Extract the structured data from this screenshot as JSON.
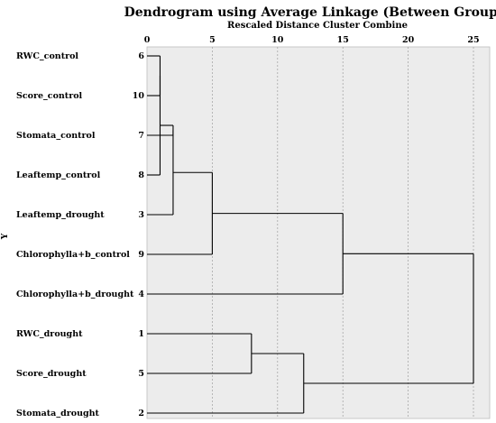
{
  "chart_data": {
    "type": "dendrogram",
    "title": "Dendrogram using Average Linkage (Between Groups)",
    "subtitle": "Rescaled Distance Cluster Combine",
    "ylabel": "Y",
    "xlim": [
      0,
      25
    ],
    "x_ticks": [
      0,
      5,
      10,
      15,
      20,
      25
    ],
    "grid": true,
    "leaves": [
      {
        "label": "RWC_control",
        "case": "6"
      },
      {
        "label": "Score_control",
        "case": "10"
      },
      {
        "label": "Stomata_control",
        "case": "7"
      },
      {
        "label": "Leaftemp_control",
        "case": "8"
      },
      {
        "label": "Leaftemp_drought",
        "case": "3"
      },
      {
        "label": "Chlorophylla+b_control",
        "case": "9"
      },
      {
        "label": "Chlorophylla+b_drought",
        "case": "4"
      },
      {
        "label": "RWC_drought",
        "case": "1"
      },
      {
        "label": "Score_drought",
        "case": "5"
      },
      {
        "label": "Stomata_drought",
        "case": "2"
      }
    ],
    "merges": [
      {
        "a": 0,
        "b": 1,
        "distance": 1
      },
      {
        "a": 10,
        "b": 3,
        "distance": 1
      },
      {
        "a": 2,
        "b": 11,
        "distance": 2
      },
      {
        "a": 12,
        "b": 4,
        "distance": 2
      },
      {
        "a": 13,
        "b": 5,
        "distance": 5
      },
      {
        "a": 14,
        "b": 6,
        "distance": 15
      },
      {
        "a": 7,
        "b": 8,
        "distance": 8
      },
      {
        "a": 16,
        "b": 9,
        "distance": 12
      },
      {
        "a": 15,
        "b": 17,
        "distance": 25
      }
    ]
  }
}
